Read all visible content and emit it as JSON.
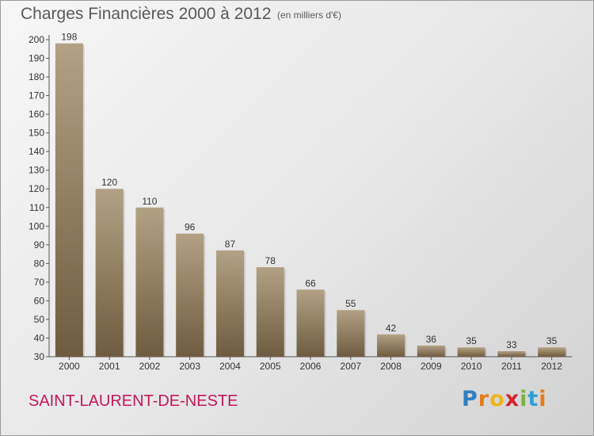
{
  "title": "Charges Financières 2000 à 2012",
  "subtitle": "(en milliers d'€)",
  "commune": "SAINT-LAURENT-DE-NESTE",
  "logo": {
    "text": "Proxiti",
    "letters": [
      {
        "ch": "P",
        "color": "#2f7fc1"
      },
      {
        "ch": "r",
        "color": "#e57c1e"
      },
      {
        "ch": "o",
        "color": "#f0b31a"
      },
      {
        "ch": "x",
        "color": "#d8232a"
      },
      {
        "ch": "i",
        "color": "#7cb342"
      },
      {
        "ch": "t",
        "color": "#2f9fd8"
      },
      {
        "ch": "i",
        "color": "#e57c1e"
      }
    ]
  },
  "colors": {
    "bar_light": "#b2a184",
    "bar_dark": "#6f5c40",
    "commune": "#c2185b"
  },
  "chart_data": {
    "type": "bar",
    "categories": [
      "2000",
      "2001",
      "2002",
      "2003",
      "2004",
      "2005",
      "2006",
      "2007",
      "2008",
      "2009",
      "2010",
      "2011",
      "2012"
    ],
    "values": [
      198,
      120,
      110,
      96,
      87,
      78,
      66,
      55,
      42,
      36,
      35,
      33,
      35
    ],
    "ylim": [
      30,
      200
    ],
    "yticks": [
      30,
      40,
      50,
      60,
      70,
      80,
      90,
      100,
      110,
      120,
      130,
      140,
      150,
      160,
      170,
      180,
      190,
      200
    ],
    "grid": false
  }
}
